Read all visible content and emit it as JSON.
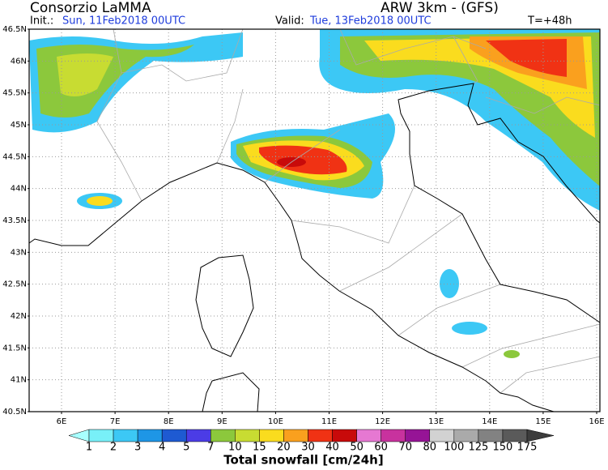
{
  "header": {
    "org": "Consorzio LaMMA",
    "model": "ARW 3km - (GFS)",
    "init_label": "Init.:",
    "init_value": "Sun, 11Feb2018 00UTC",
    "valid_label": "Valid:",
    "valid_value": "Tue, 13Feb2018 00UTC",
    "lead": "T=+48h"
  },
  "map": {
    "lat_labels": [
      "46.5N",
      "46N",
      "45.5N",
      "45N",
      "44.5N",
      "44N",
      "43.5N",
      "43N",
      "42.5N",
      "42N",
      "41.5N",
      "41N",
      "40.5N"
    ],
    "lon_labels": [
      "6E",
      "7E",
      "8E",
      "9E",
      "10E",
      "11E",
      "12E",
      "13E",
      "14E",
      "15E",
      "16E"
    ]
  },
  "colorbar": {
    "labels": [
      "1",
      "2",
      "3",
      "4",
      "5",
      "7",
      "10",
      "15",
      "20",
      "30",
      "40",
      "50",
      "60",
      "70",
      "80",
      "100",
      "125",
      "150",
      "175"
    ],
    "colors": [
      "#a8ffff",
      "#78f0f8",
      "#3cc8f5",
      "#1e96e6",
      "#1e5ad2",
      "#4b3ce6",
      "#8cc83c",
      "#c8dc32",
      "#fadc1e",
      "#faa01e",
      "#f03214",
      "#c80a0a",
      "#e678d2",
      "#c8329e",
      "#961496",
      "#d2d2d2",
      "#aaaaaa",
      "#828282",
      "#5a5a5a",
      "#3c3c3c"
    ],
    "title": "Total snowfall [cm/24h]"
  }
}
